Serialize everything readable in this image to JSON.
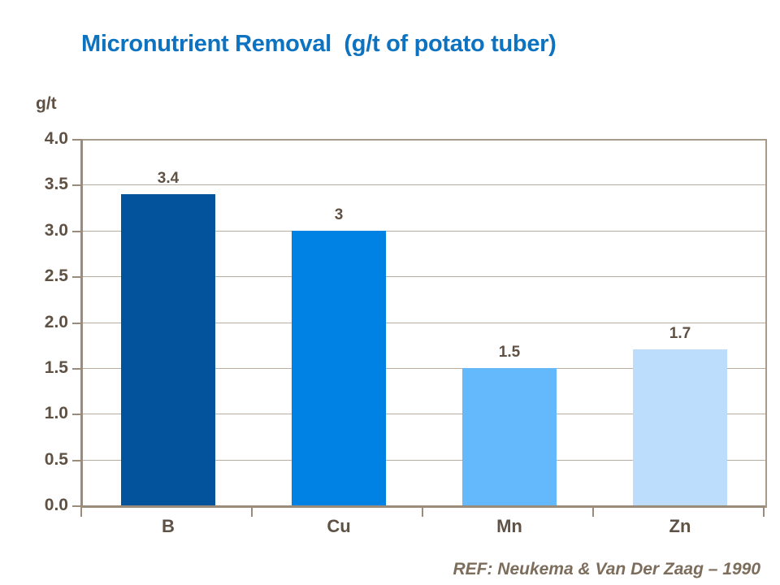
{
  "slide": {
    "title": "Micronutrient Removal  (g/t of potato tuber)",
    "y_axis_unit_label": "g/t",
    "reference": "REF: Neukema & Van Der Zaag – 1990"
  },
  "colors": {
    "title_blue": "#0d73c0",
    "axis_line": "#9a8b7b",
    "plot_border": "#a89b8c",
    "gridline": "#b9ada0",
    "label_text": "#5f5244",
    "reference_text": "#7d6d5c",
    "background": "#ffffff"
  },
  "chart_data": {
    "type": "bar",
    "title": "Micronutrient Removal (g/t of potato tuber)",
    "categories": [
      "B",
      "Cu",
      "Mn",
      "Zn"
    ],
    "values": [
      3.4,
      3,
      1.5,
      1.7
    ],
    "value_labels": [
      "3.4",
      "3",
      "1.5",
      "1.7"
    ],
    "bar_colors": [
      "#02539b",
      "#0081e4",
      "#63b9fc",
      "#bcddfb"
    ],
    "xlabel": "",
    "ylabel": "g/t",
    "ylim": [
      0,
      4
    ],
    "ytick_step": 0.5,
    "ytick_labels": [
      "0.0",
      "0.5",
      "1.0",
      "1.5",
      "2.0",
      "2.5",
      "3.0",
      "3.5",
      "4.0"
    ],
    "grid": true,
    "legend": "none",
    "source": "REF: Neukema & Van Der Zaag – 1990"
  }
}
